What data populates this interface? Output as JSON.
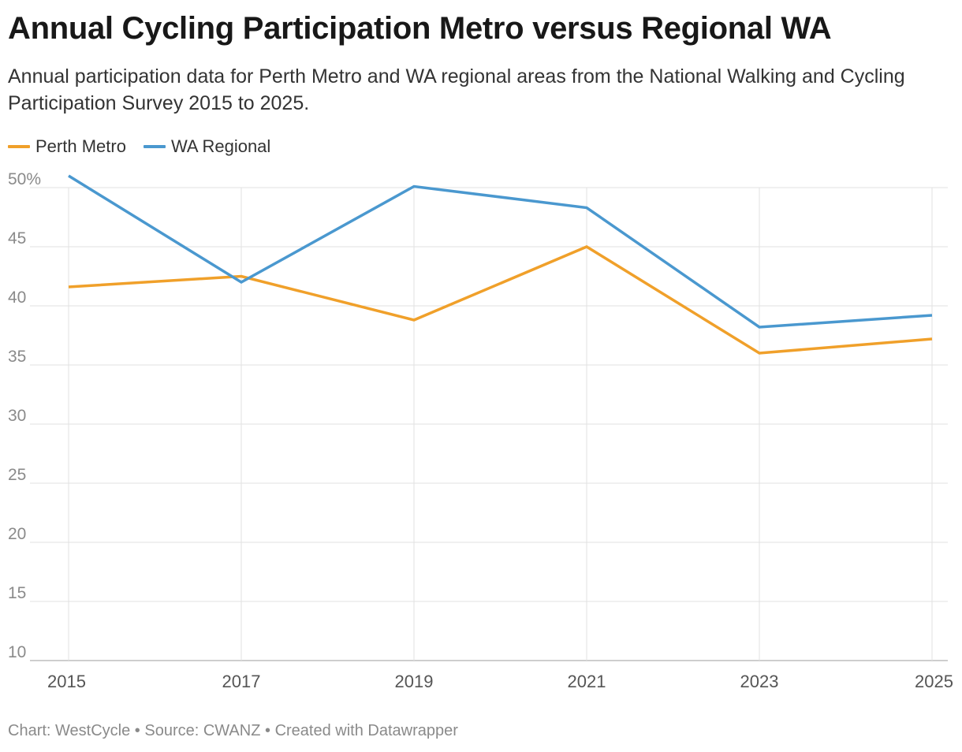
{
  "title": "Annual Cycling Participation Metro versus Regional WA",
  "subtitle": "Annual participation data for Perth Metro and WA regional areas from the National Walking and Cycling Participation Survey 2015 to 2025.",
  "footer": {
    "chart_by": "Chart: WestCycle",
    "separator": "•",
    "source": "Source: CWANZ",
    "created_with": "Created with Datawrapper"
  },
  "chart_data": {
    "type": "line",
    "x": [
      2015,
      2017,
      2019,
      2021,
      2023,
      2025
    ],
    "x_tick_labels": [
      "2015",
      "2017",
      "2019",
      "2021",
      "2023",
      "2025"
    ],
    "xlim": [
      2015,
      2025
    ],
    "ylim": [
      10,
      50
    ],
    "y_ticks": [
      10,
      15,
      20,
      25,
      30,
      35,
      40,
      45,
      50
    ],
    "y_tick_labels": [
      "10",
      "15",
      "20",
      "25",
      "30",
      "35",
      "40",
      "45",
      "50%"
    ],
    "grid": true,
    "legend_position": "top-left",
    "xlabel": "",
    "ylabel": "",
    "series": [
      {
        "name": "Perth Metro",
        "color": "#f0a02a",
        "values": [
          41.6,
          42.5,
          38.8,
          45.0,
          36.0,
          37.2
        ]
      },
      {
        "name": "WA Regional",
        "color": "#4a98cf",
        "values": [
          51.0,
          42.0,
          50.1,
          48.3,
          38.2,
          39.2
        ]
      }
    ]
  }
}
